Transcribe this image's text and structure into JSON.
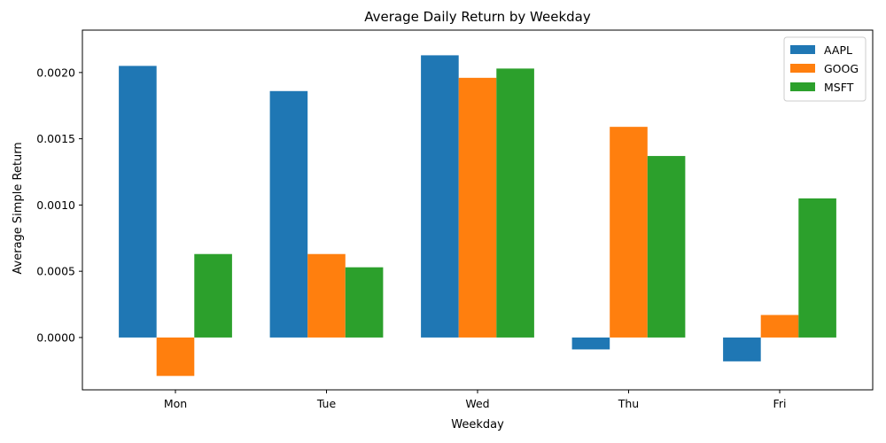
{
  "chart_data": {
    "type": "bar",
    "title": "Average Daily Return by Weekday",
    "xlabel": "Weekday",
    "ylabel": "Average Simple Return",
    "categories": [
      "Mon",
      "Tue",
      "Wed",
      "Thu",
      "Fri"
    ],
    "series": [
      {
        "name": "AAPL",
        "color": "#1f77b4",
        "values": [
          0.00205,
          0.00186,
          0.00213,
          -9e-05,
          -0.00018
        ]
      },
      {
        "name": "GOOG",
        "color": "#ff7f0e",
        "values": [
          -0.00029,
          0.00063,
          0.00196,
          0.00159,
          0.00017
        ]
      },
      {
        "name": "MSFT",
        "color": "#2ca02c",
        "values": [
          0.00063,
          0.00053,
          0.00203,
          0.00137,
          0.00105
        ]
      }
    ],
    "ylim": [
      -0.000395,
      0.00232
    ],
    "yticks": [
      "0.0000",
      "0.0005",
      "0.0010",
      "0.0015",
      "0.0020"
    ],
    "ytick_values": [
      0,
      0.0005,
      0.001,
      0.0015,
      0.002
    ],
    "grid": false,
    "legend_position": "top-right"
  }
}
